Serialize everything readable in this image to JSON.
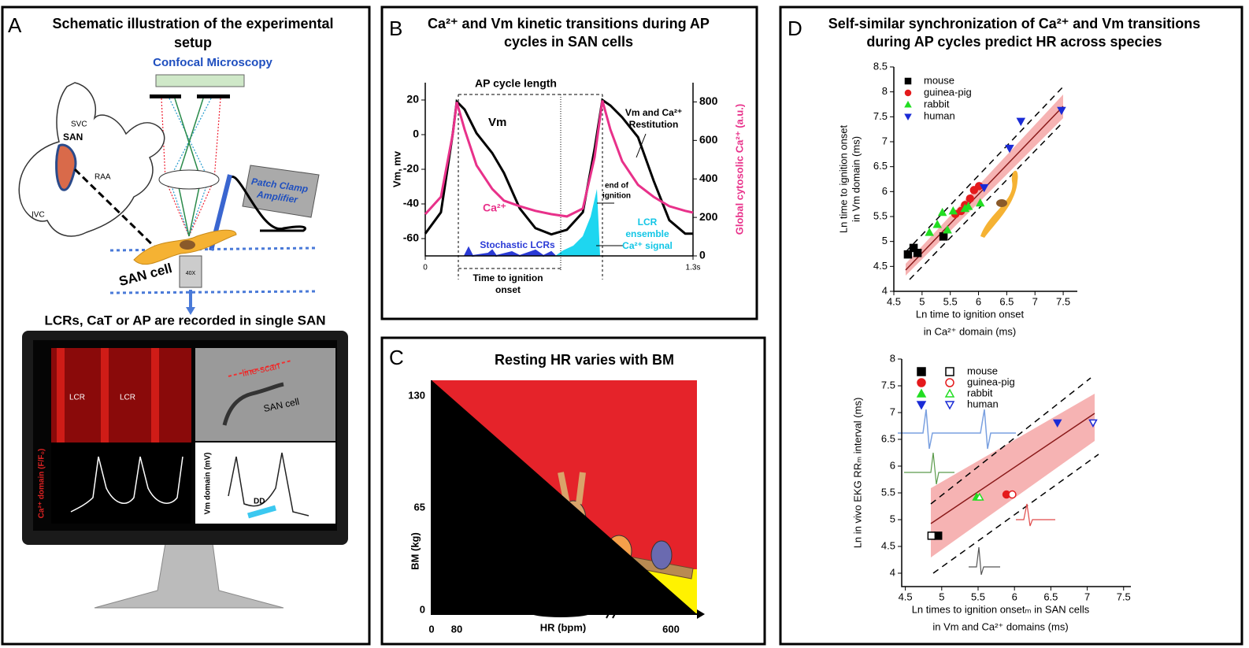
{
  "panels": {
    "A": {
      "letter": "A",
      "title": [
        "Schematic illustration of the experimental",
        "setup"
      ],
      "microscopy": "Confocal Microscopy",
      "heart": {
        "svc": "SVC",
        "san": "SAN",
        "raa": "RAA",
        "ivc": "IVC"
      },
      "amplifier": [
        "Patch Clamp",
        "Amplifier"
      ],
      "objective": "40X",
      "cell": "SAN cell",
      "recorded": "LCRs, CaT or AP are recorded in single SAN",
      "screen": {
        "lcr_1": "LCR",
        "lcr_2": "LCR",
        "line_scan": "line-scan",
        "cell": "SAN cell",
        "ca_label": "Ca²⁺ domain (F/F₀)",
        "vm_label": "Vm domain (mV)",
        "dd": "DD"
      }
    },
    "B": {
      "letter": "B",
      "title": [
        "Ca²⁺ and Vm kinetic transitions during AP",
        "cycles in SAN cells"
      ]
    },
    "C": {
      "letter": "C",
      "title": "Resting HR varies with BM",
      "ylabel": "BM (kg)",
      "xlabel": "HR (bpm)",
      "yticks": [
        130,
        65,
        0
      ],
      "xticks": [
        0,
        80,
        600
      ]
    },
    "D": {
      "letter": "D",
      "title": [
        "Self-similar synchronization of Ca²⁺ and Vm transitions",
        "during AP cycles predict HR across species"
      ]
    }
  },
  "chart_data": [
    {
      "type": "line",
      "ylabel": "Vm, mv",
      "y2label": "Global cytosolic Ca²⁺ (a.u.)",
      "x": [
        0,
        0.076,
        0.134,
        0.153,
        0.191,
        0.249,
        0.325,
        0.382,
        0.459,
        0.535,
        0.612,
        0.688,
        0.765,
        0.822,
        0.86,
        0.899,
        0.956,
        1.033,
        1.109,
        1.185,
        1.262,
        1.3
      ],
      "xlim": [
        0,
        1.3
      ],
      "xticks": [
        0,
        {
          "value": 1.3,
          "label": "1.3s"
        }
      ],
      "ylim": [
        -70,
        30
      ],
      "yticks": [
        20,
        0,
        -20,
        -40,
        -60
      ],
      "y2lim": [
        0,
        900
      ],
      "y2ticks": [
        800,
        600,
        400,
        200,
        0
      ],
      "series": [
        {
          "name": "Vm",
          "color": "#000000",
          "values": [
            -57.2,
            -44.8,
            0.8,
            19.1,
            14.5,
            0.8,
            -10.6,
            -22.1,
            -42.6,
            -54,
            -57.6,
            -54.9,
            -44.8,
            -8.3,
            20,
            16.8,
            10,
            -1.5,
            -26.6,
            -49.4,
            -57.2,
            -57.2
          ]
        },
        {
          "name": "Ca²⁺",
          "color": "#e8318a",
          "axis": "y2",
          "values": [
            217,
            307,
            635,
            799,
            656,
            471,
            348,
            287,
            258,
            234,
            217,
            205,
            246,
            512,
            807,
            656,
            492,
            369,
            307,
            258,
            234,
            225
          ]
        }
      ],
      "annotations": {
        "cycle": "AP cycle length",
        "restitution": [
          "Vm and Ca²⁺",
          "Restitution"
        ],
        "end": [
          "end of",
          "ignition"
        ],
        "ensemble": [
          "LCR",
          "ensemble",
          "Ca²⁺ signal"
        ],
        "stochastic": "Stochastic LCRs",
        "onset": [
          "Time to ignition",
          "onset"
        ]
      }
    },
    {
      "type": "scatter",
      "xlabel": [
        "Ln time to ignition onset",
        "in Ca²⁺ domain (ms)"
      ],
      "ylabel": [
        "Ln time to ignition onset",
        "in Vm domain (ms)"
      ],
      "xlim": [
        4.5,
        7.75
      ],
      "xticks": [
        4.5,
        5,
        5.5,
        6,
        6.5,
        7,
        7.5
      ],
      "ylim": [
        4,
        8.5
      ],
      "yticks": [
        4,
        4.5,
        5,
        5.5,
        6,
        6.5,
        7,
        7.5,
        8,
        8.5
      ],
      "legend": "upper left",
      "series": [
        {
          "name": "mouse",
          "color": "#000000",
          "marker": "square",
          "x": [
            4.75,
            4.85,
            4.92,
            5.38
          ],
          "values": [
            4.74,
            4.87,
            4.77,
            5.1
          ]
        },
        {
          "name": "guinea-pig",
          "color": "#e41a1c",
          "marker": "circle",
          "x": [
            5.59,
            5.69,
            5.76,
            5.85,
            5.92,
            6.01
          ],
          "values": [
            5.55,
            5.61,
            5.73,
            5.86,
            6.03,
            6.11
          ]
        },
        {
          "name": "rabbit",
          "color": "#22dd22",
          "marker": "triangle",
          "x": [
            5.13,
            5.27,
            5.36,
            5.45,
            5.55,
            5.76,
            5.82,
            6.03
          ],
          "values": [
            5.18,
            5.34,
            5.58,
            5.23,
            5.61,
            5.66,
            5.7,
            5.77
          ]
        },
        {
          "name": "human",
          "color": "#1a2bd6",
          "marker": "triangle-down",
          "x": [
            6.1,
            6.55,
            6.75,
            7.47
          ],
          "values": [
            6.08,
            6.87,
            7.41,
            7.63
          ]
        }
      ]
    },
    {
      "type": "scatter",
      "xlabel": [
        "Ln times to ignition onsetₘ in SAN cells",
        "in Vm and Ca²⁺ domains (ms)"
      ],
      "ylabel": [
        "Ln in vivo EKG RRₘ interval (ms)"
      ],
      "xlim": [
        4.45,
        7.6
      ],
      "xticks": [
        4.5,
        5,
        5.5,
        6,
        6.5,
        7,
        7.5
      ],
      "ylim": [
        3.75,
        8
      ],
      "yticks": [
        4,
        4.5,
        5,
        5.5,
        6,
        6.5,
        7,
        7.5,
        8
      ],
      "legend": "upper left",
      "markers_filled": [
        true,
        false
      ],
      "series": [
        {
          "name": "mouse",
          "color": "#000000",
          "marker": "square",
          "x": [
            4.95,
            4.86
          ],
          "values": [
            4.7,
            4.7
          ]
        },
        {
          "name": "guinea-pig",
          "color": "#e41a1c",
          "marker": "circle",
          "x": [
            5.89,
            5.97
          ],
          "values": [
            5.47,
            5.47
          ]
        },
        {
          "name": "rabbit",
          "color": "#22dd22",
          "marker": "triangle",
          "x": [
            5.48,
            5.52
          ],
          "values": [
            5.42,
            5.42
          ]
        },
        {
          "name": "human",
          "color": "#1a2bd6",
          "marker": "triangle-down",
          "x": [
            6.59,
            7.08
          ],
          "values": [
            6.81,
            6.81
          ]
        }
      ]
    }
  ]
}
